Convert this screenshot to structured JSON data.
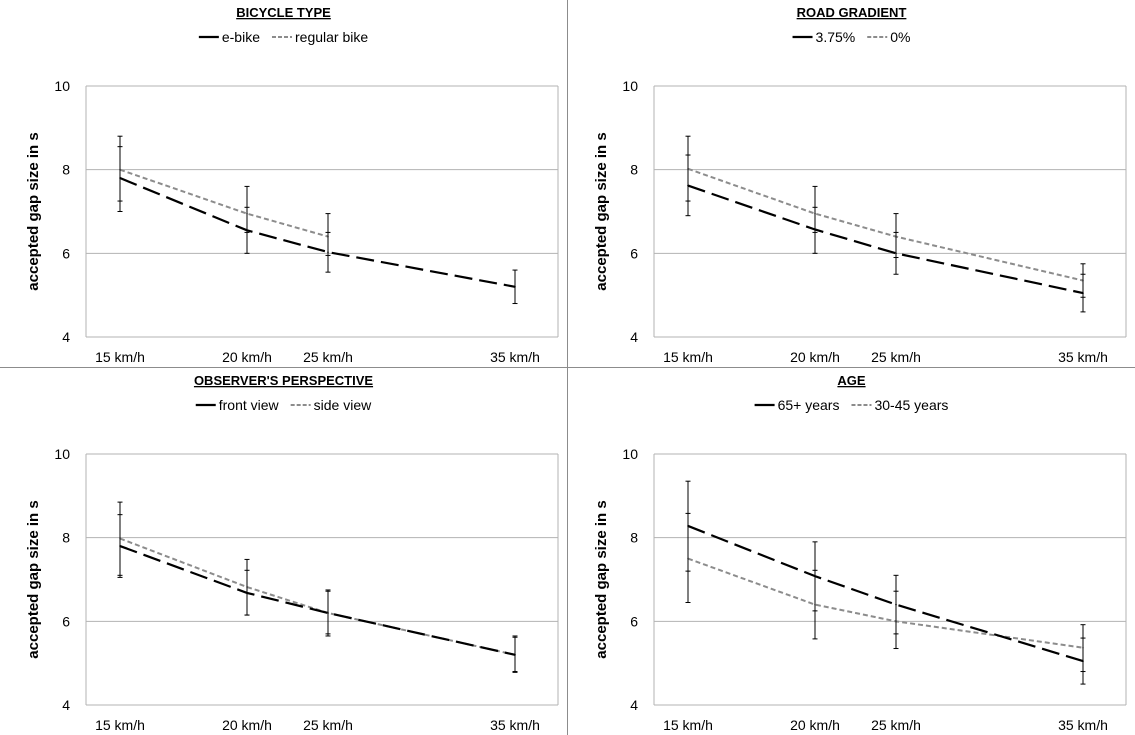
{
  "colors": {
    "series_1": "#000000",
    "series_2": "#8c8c8c",
    "grid": "#b3b3b3",
    "axis": "#b3b3b3",
    "divider": "#8c8c8c"
  },
  "chart_data": [
    {
      "type": "line",
      "title": "BICYCLE TYPE",
      "ylabel": "accepted gap size in s",
      "xlabel": "",
      "ylim": [
        4,
        10
      ],
      "yticks": [
        4,
        6,
        8,
        10
      ],
      "grid": true,
      "legend_position": "top",
      "x": [
        15,
        20,
        25,
        35
      ],
      "xticklabels": [
        "15 km/h",
        "20 km/h",
        "25 km/h",
        "35 km/h"
      ],
      "series": [
        {
          "name": "e-bike",
          "style": "long-dash",
          "values": [
            7.8,
            6.55,
            6.03,
            5.2
          ],
          "err_low": [
            7.0,
            6.0,
            5.55,
            4.8
          ],
          "err_high": [
            8.55,
            7.1,
            6.5,
            5.6
          ]
        },
        {
          "name": "regular bike",
          "style": "short-dash",
          "values": [
            8.0,
            6.95,
            6.4,
            null
          ],
          "err_low": [
            7.25,
            6.5,
            5.95,
            null
          ],
          "err_high": [
            8.8,
            7.6,
            6.95,
            null
          ]
        }
      ]
    },
    {
      "type": "line",
      "title": "ROAD GRADIENT",
      "ylabel": "accepted gap size in s",
      "xlabel": "",
      "ylim": [
        4,
        10
      ],
      "yticks": [
        4,
        6,
        8,
        10
      ],
      "grid": true,
      "legend_position": "top",
      "x": [
        15,
        20,
        25,
        35
      ],
      "xticklabels": [
        "15 km/h",
        "20 km/h",
        "25 km/h",
        "35 km/h"
      ],
      "series": [
        {
          "name": "3.75%",
          "style": "long-dash",
          "values": [
            7.62,
            6.57,
            6.0,
            5.05
          ],
          "err_low": [
            6.9,
            6.0,
            5.5,
            4.6
          ],
          "err_high": [
            8.35,
            7.1,
            6.5,
            5.5
          ]
        },
        {
          "name": "0%",
          "style": "short-dash",
          "values": [
            8.02,
            6.95,
            6.4,
            5.35
          ],
          "err_low": [
            7.25,
            6.5,
            5.9,
            4.95
          ],
          "err_high": [
            8.8,
            7.6,
            6.95,
            5.75
          ]
        }
      ]
    },
    {
      "type": "line",
      "title": "OBSERVER'S PERSPECTIVE",
      "ylabel": "accepted gap size in s",
      "xlabel": "",
      "ylim": [
        4,
        10
      ],
      "yticks": [
        4,
        6,
        8,
        10
      ],
      "grid": true,
      "legend_position": "top",
      "x": [
        15,
        20,
        25,
        35
      ],
      "xticklabels": [
        "15 km/h",
        "20 km/h",
        "25 km/h",
        "35 km/h"
      ],
      "series": [
        {
          "name": "front view",
          "style": "long-dash",
          "values": [
            7.8,
            6.68,
            6.2,
            5.2
          ],
          "err_low": [
            7.05,
            6.15,
            5.7,
            4.78
          ],
          "err_high": [
            8.55,
            7.22,
            6.72,
            5.62
          ]
        },
        {
          "name": "side view",
          "style": "short-dash",
          "values": [
            7.98,
            6.82,
            6.2,
            5.2
          ],
          "err_low": [
            7.1,
            6.15,
            5.65,
            4.8
          ],
          "err_high": [
            8.85,
            7.48,
            6.75,
            5.65
          ]
        }
      ]
    },
    {
      "type": "line",
      "title": "AGE",
      "ylabel": "accepted gap size in s",
      "xlabel": "",
      "ylim": [
        4,
        10
      ],
      "yticks": [
        4,
        6,
        8,
        10
      ],
      "grid": true,
      "legend_position": "top",
      "x": [
        15,
        20,
        25,
        35
      ],
      "xticklabels": [
        "15 km/h",
        "20 km/h",
        "25 km/h",
        "35 km/h"
      ],
      "series": [
        {
          "name": "65+ years",
          "style": "long-dash",
          "values": [
            8.28,
            7.08,
            6.4,
            5.05
          ],
          "err_low": [
            7.2,
            6.25,
            5.7,
            4.5
          ],
          "err_high": [
            9.35,
            7.9,
            7.1,
            5.6
          ]
        },
        {
          "name": "30-45 years",
          "style": "short-dash",
          "values": [
            7.5,
            6.4,
            6.0,
            5.37
          ],
          "err_low": [
            6.45,
            5.58,
            5.35,
            4.8
          ],
          "err_high": [
            8.58,
            7.22,
            6.72,
            5.92
          ]
        }
      ]
    }
  ]
}
